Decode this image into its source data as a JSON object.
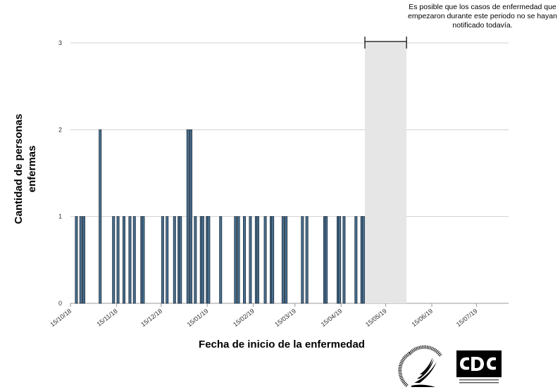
{
  "chart_data": {
    "type": "bar",
    "xlabel": "Fecha de inicio de la enfermedad",
    "ylabel": "Cantidad de personas enfermas",
    "ylim": [
      0,
      3
    ],
    "yticks": [
      "0",
      "1",
      "2",
      "3"
    ],
    "xticks": [
      "15/10/18",
      "15/11/18",
      "15/12/18",
      "15/01/19",
      "15/02/19",
      "15/03/19",
      "15/04/19",
      "15/05/19",
      "15/06/19",
      "15/07/19"
    ],
    "grid": true,
    "note": "Es posible que los casos de enfermedad que empezaron durante este periodo no se hayan notificado todavía.",
    "values": [
      {
        "x": "2018-10-19",
        "y": 1
      },
      {
        "x": "2018-10-22",
        "y": 1
      },
      {
        "x": "2018-10-24",
        "y": 1
      },
      {
        "x": "2018-11-04",
        "y": 2
      },
      {
        "x": "2018-11-13",
        "y": 1
      },
      {
        "x": "2018-11-16",
        "y": 1
      },
      {
        "x": "2018-11-20",
        "y": 1
      },
      {
        "x": "2018-11-24",
        "y": 1
      },
      {
        "x": "2018-11-27",
        "y": 1
      },
      {
        "x": "2018-12-02",
        "y": 1
      },
      {
        "x": "2018-12-03",
        "y": 1
      },
      {
        "x": "2018-12-16",
        "y": 1
      },
      {
        "x": "2018-12-19",
        "y": 1
      },
      {
        "x": "2018-12-24",
        "y": 1
      },
      {
        "x": "2018-12-27",
        "y": 1
      },
      {
        "x": "2018-12-28",
        "y": 1
      },
      {
        "x": "2019-01-02",
        "y": 2
      },
      {
        "x": "2019-01-04",
        "y": 2
      },
      {
        "x": "2019-01-07",
        "y": 1
      },
      {
        "x": "2019-01-11",
        "y": 1
      },
      {
        "x": "2019-01-12",
        "y": 1
      },
      {
        "x": "2019-01-15",
        "y": 1
      },
      {
        "x": "2019-01-16",
        "y": 1
      },
      {
        "x": "2019-01-24",
        "y": 1
      },
      {
        "x": "2019-02-03",
        "y": 1
      },
      {
        "x": "2019-02-05",
        "y": 1
      },
      {
        "x": "2019-02-09",
        "y": 1
      },
      {
        "x": "2019-02-13",
        "y": 1
      },
      {
        "x": "2019-02-17",
        "y": 1
      },
      {
        "x": "2019-02-18",
        "y": 1
      },
      {
        "x": "2019-02-23",
        "y": 1
      },
      {
        "x": "2019-02-27",
        "y": 1
      },
      {
        "x": "2019-02-28",
        "y": 1
      },
      {
        "x": "2019-03-07",
        "y": 1
      },
      {
        "x": "2019-03-09",
        "y": 1
      },
      {
        "x": "2019-03-20",
        "y": 1
      },
      {
        "x": "2019-03-23",
        "y": 1
      },
      {
        "x": "2019-04-04",
        "y": 1
      },
      {
        "x": "2019-04-05",
        "y": 1
      },
      {
        "x": "2019-04-13",
        "y": 1
      },
      {
        "x": "2019-04-14",
        "y": 1
      },
      {
        "x": "2019-04-17",
        "y": 1
      },
      {
        "x": "2019-04-25",
        "y": 1
      },
      {
        "x": "2019-04-29",
        "y": 1
      },
      {
        "x": "2019-04-30",
        "y": 1
      }
    ],
    "unreported_period": {
      "start": "2019-05-01",
      "end": "2019-05-29"
    },
    "bar_color": "#4a6f8f",
    "shade_color": "#e6e6e6"
  }
}
